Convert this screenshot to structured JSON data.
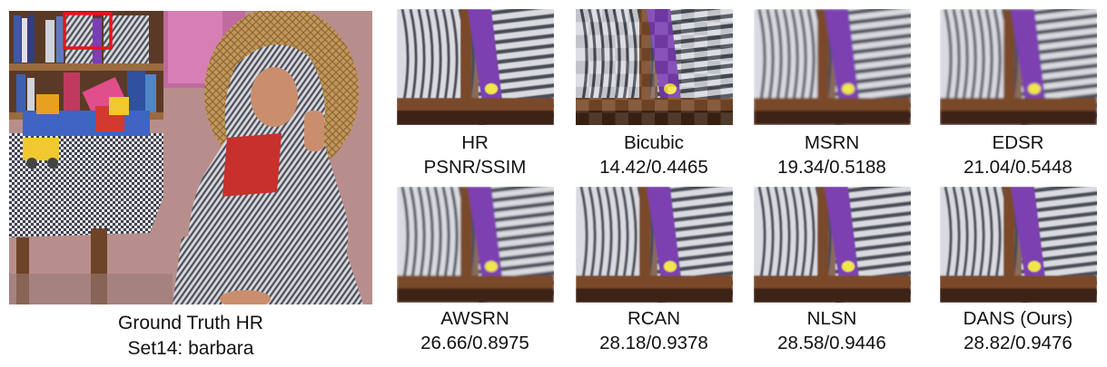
{
  "ground_truth": {
    "caption_line1": "Ground Truth HR",
    "caption_line2": "Set14: barbara"
  },
  "crops": [
    {
      "method": "HR",
      "metric": "PSNR/SSIM"
    },
    {
      "method": "Bicubic",
      "metric": "14.42/0.4465"
    },
    {
      "method": "MSRN",
      "metric": "19.34/0.5188"
    },
    {
      "method": "EDSR",
      "metric": "21.04/0.5448"
    },
    {
      "method": "AWSRN",
      "metric": "26.66/0.8975"
    },
    {
      "method": "RCAN",
      "metric": "28.18/0.9378"
    },
    {
      "method": "NLSN",
      "metric": "28.58/0.9446"
    },
    {
      "method": "DANS (Ours)",
      "metric": "28.82/0.9476"
    }
  ],
  "colors": {
    "highlight_box": "#e8141c",
    "wood": "#7a4a2a",
    "book_purple": "#7b3fb0",
    "stripe_light": "#d9dbe0",
    "stripe_dark": "#4a4e58"
  }
}
